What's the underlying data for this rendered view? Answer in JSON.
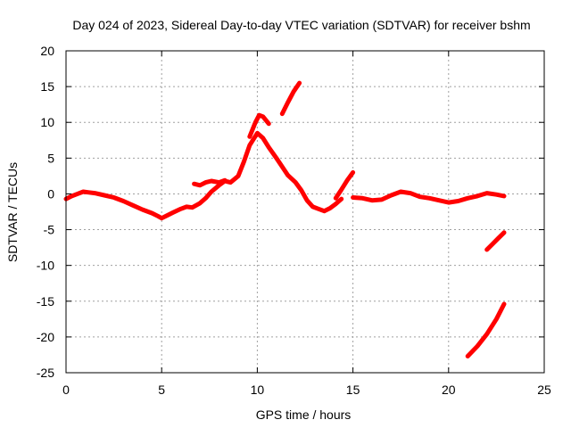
{
  "chart_data": {
    "type": "line",
    "title": "Day 024 of 2023, Sidereal Day-to-day VTEC variation (SDTVAR) for receiver bshm",
    "xlabel": "GPS time / hours",
    "ylabel": "SDTVAR / TECUs",
    "xlim": [
      0,
      25
    ],
    "ylim": [
      -25,
      20
    ],
    "xticks": [
      0,
      5,
      10,
      15,
      20,
      25
    ],
    "yticks": [
      -25,
      -20,
      -15,
      -10,
      -5,
      0,
      5,
      10,
      15,
      20
    ],
    "xtick_labels": [
      "0",
      "5",
      "10",
      "15",
      "20",
      "25"
    ],
    "ytick_labels": [
      "-25",
      "-20",
      "-15",
      "-10",
      "-5",
      "0",
      "5",
      "10",
      "15",
      "20"
    ],
    "grid": true,
    "color": "#ff0000",
    "series": [
      {
        "name": "main-track",
        "x": [
          0.0,
          0.3,
          0.6,
          0.9,
          1.2,
          1.5,
          2.0,
          2.5,
          3.0,
          3.5,
          4.0,
          4.5,
          4.8,
          5.0,
          5.3,
          5.6,
          6.0,
          6.3,
          6.6,
          7.0,
          7.3,
          7.6,
          8.0,
          8.3,
          8.6,
          9.0,
          9.3,
          9.6,
          10.0,
          10.3,
          10.6,
          11.0,
          11.3,
          11.6,
          12.0,
          12.3,
          12.6,
          12.9,
          13.2,
          13.5,
          13.8,
          14.1,
          14.4
        ],
        "y": [
          -0.7,
          -0.3,
          0.0,
          0.3,
          0.2,
          0.1,
          -0.2,
          -0.5,
          -1.0,
          -1.6,
          -2.2,
          -2.7,
          -3.1,
          -3.4,
          -3.0,
          -2.6,
          -2.1,
          -1.8,
          -1.9,
          -1.3,
          -0.6,
          0.3,
          1.2,
          1.8,
          1.6,
          2.5,
          4.5,
          6.8,
          8.5,
          7.8,
          6.5,
          5.0,
          3.8,
          2.6,
          1.6,
          0.5,
          -0.9,
          -1.8,
          -2.1,
          -2.4,
          -2.0,
          -1.4,
          -0.7
        ]
      },
      {
        "name": "segment-7h",
        "x": [
          6.7,
          7.0,
          7.3,
          7.6,
          8.0,
          8.3
        ],
        "y": [
          1.4,
          1.2,
          1.6,
          1.8,
          1.6,
          1.9
        ]
      },
      {
        "name": "segment-10h",
        "x": [
          9.6,
          9.9,
          10.1,
          10.3,
          10.6
        ],
        "y": [
          8.0,
          10.0,
          11.0,
          10.8,
          9.8
        ]
      },
      {
        "name": "segment-rise-12h",
        "x": [
          11.3,
          11.6,
          11.9,
          12.2
        ],
        "y": [
          11.2,
          12.8,
          14.3,
          15.5
        ]
      },
      {
        "name": "segment-rise-14h",
        "x": [
          14.1,
          14.4,
          14.7,
          15.0
        ],
        "y": [
          -0.6,
          0.6,
          1.9,
          3.0
        ]
      },
      {
        "name": "segment-15-23h",
        "x": [
          15.0,
          15.5,
          16.0,
          16.5,
          17.0,
          17.5,
          18.0,
          18.5,
          19.0,
          19.5,
          20.0,
          20.5,
          21.0,
          21.5,
          22.0,
          22.5,
          22.9
        ],
        "y": [
          -0.5,
          -0.6,
          -0.9,
          -0.8,
          -0.2,
          0.3,
          0.1,
          -0.4,
          -0.6,
          -0.9,
          -1.2,
          -1.0,
          -0.6,
          -0.3,
          0.1,
          -0.1,
          -0.3
        ]
      },
      {
        "name": "segment-22h-drop",
        "x": [
          22.0,
          22.3,
          22.6,
          22.9
        ],
        "y": [
          -7.8,
          -7.0,
          -6.2,
          -5.4
        ]
      },
      {
        "name": "segment-21h-deep",
        "x": [
          21.0,
          21.5,
          22.0,
          22.5,
          22.9
        ],
        "y": [
          -22.7,
          -21.3,
          -19.6,
          -17.5,
          -15.4
        ]
      }
    ]
  }
}
